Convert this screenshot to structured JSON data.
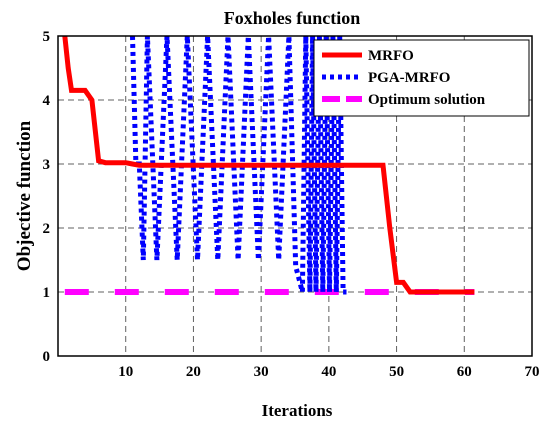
{
  "colors": {
    "mrfo": "#ff0000",
    "pga_mrfo": "#0000ff",
    "optimum": "#ff00ff",
    "grid": "#606060",
    "axis": "#000000"
  },
  "chart_data": {
    "type": "line",
    "title": "Foxholes function",
    "xlabel": "Iterations",
    "ylabel": "Objective function",
    "xlim": [
      0,
      70
    ],
    "ylim": [
      0,
      5
    ],
    "xticks": [
      10,
      20,
      30,
      40,
      50,
      60,
      70
    ],
    "yticks": [
      0,
      1,
      2,
      3,
      4,
      5
    ],
    "grid": true,
    "legend_position": "top-right",
    "series": [
      {
        "name": "MRFO",
        "style": "solid",
        "color": "#ff0000",
        "x": [
          1,
          1.5,
          2,
          4,
          5,
          6,
          7,
          10,
          11,
          12,
          20,
          30,
          40,
          47,
          48,
          49,
          50,
          51,
          52,
          53,
          55,
          58,
          60,
          61.5
        ],
        "y": [
          5,
          4.5,
          4.15,
          4.15,
          4.0,
          3.05,
          3.02,
          3.02,
          3.0,
          2.98,
          2.98,
          2.98,
          2.98,
          2.98,
          2.98,
          2.0,
          1.15,
          1.15,
          1.0,
          1.0,
          1.0,
          1.0,
          1.0,
          1.0
        ]
      },
      {
        "name": "PGA-MRFO",
        "style": "dotted",
        "color": "#0000ff",
        "x": [
          11,
          11.5,
          12,
          12.6,
          13.2,
          14.6,
          16.1,
          17.6,
          19.1,
          20.6,
          22.1,
          23.6,
          25.1,
          26.6,
          28.1,
          29.6,
          31.1,
          32.6,
          34.1,
          35.1,
          35.6,
          36.1,
          36.6,
          37.2,
          37.6,
          38.1,
          38.6,
          39.1,
          39.6,
          40.1,
          40.6,
          41.1,
          41.6,
          42.1,
          42.6
        ],
        "y": [
          5,
          3.0,
          3.0,
          1.5,
          5,
          1.5,
          5,
          1.5,
          5,
          1.5,
          5,
          1.5,
          5,
          1.5,
          5,
          1.5,
          5,
          1.5,
          5,
          1.4,
          1.2,
          1.0,
          5,
          1.0,
          5,
          1.0,
          5,
          1.0,
          5,
          1.0,
          5,
          1.0,
          5,
          1.0,
          1.0
        ]
      },
      {
        "name": "Optimum solution",
        "style": "dashed",
        "color": "#ff00ff",
        "x": [
          1,
          61.5
        ],
        "y": [
          1,
          1
        ]
      }
    ]
  }
}
